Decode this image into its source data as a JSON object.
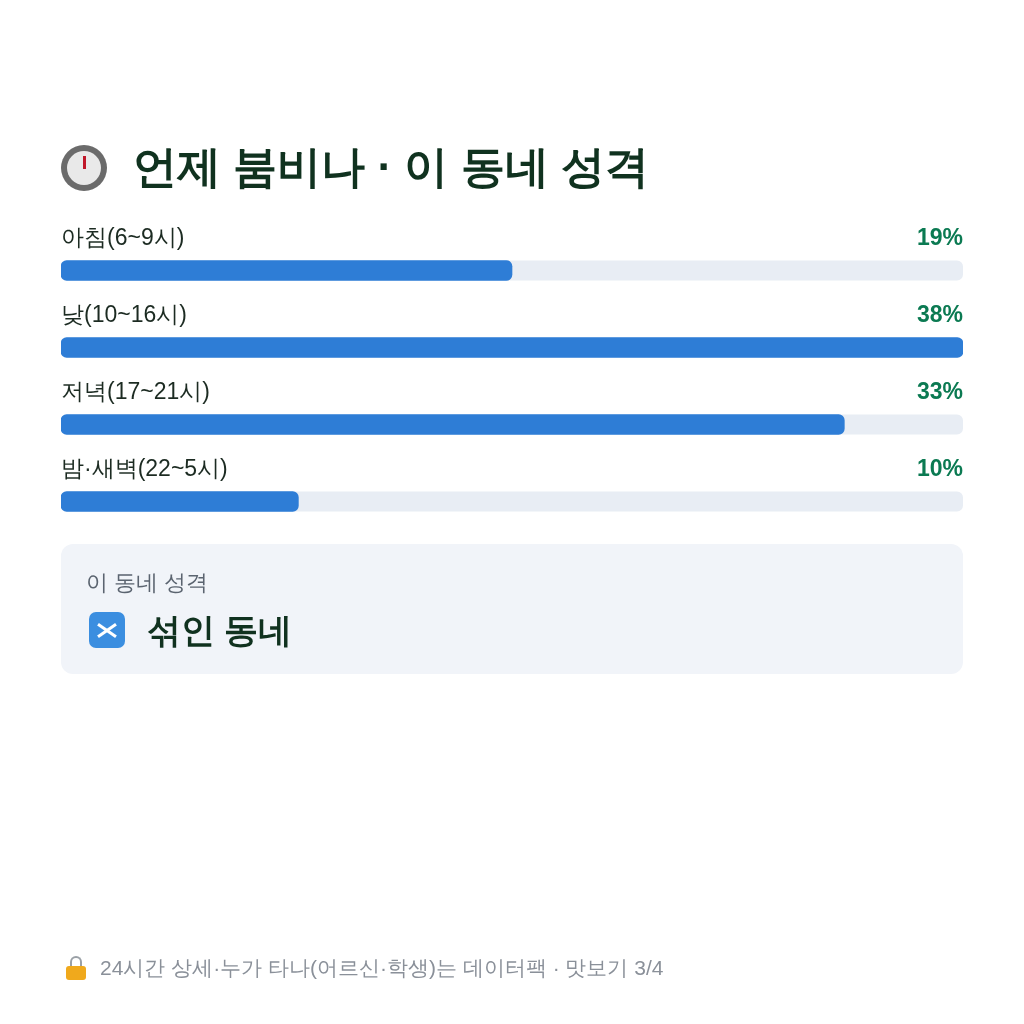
{
  "chart_data": {
    "type": "bar",
    "orientation": "horizontal",
    "title": "언제 붐비나 · 이 동네 성격",
    "categories": [
      "아침(6~9시)",
      "낮(10~16시)",
      "저녁(17~21시)",
      "밤·새벽(22~5시)"
    ],
    "values": [
      19,
      38,
      33,
      10
    ],
    "color": "#2e7dd6",
    "value_labels": [
      "19%",
      "38%",
      "33%",
      "10%"
    ],
    "legend": false,
    "annotations": [
      "이 동네 성격",
      "섞인 동네",
      "24시간 상세·누가 타나(어르신·학생)는 데이터팩 · 맛보기 3/4"
    ]
  }
}
